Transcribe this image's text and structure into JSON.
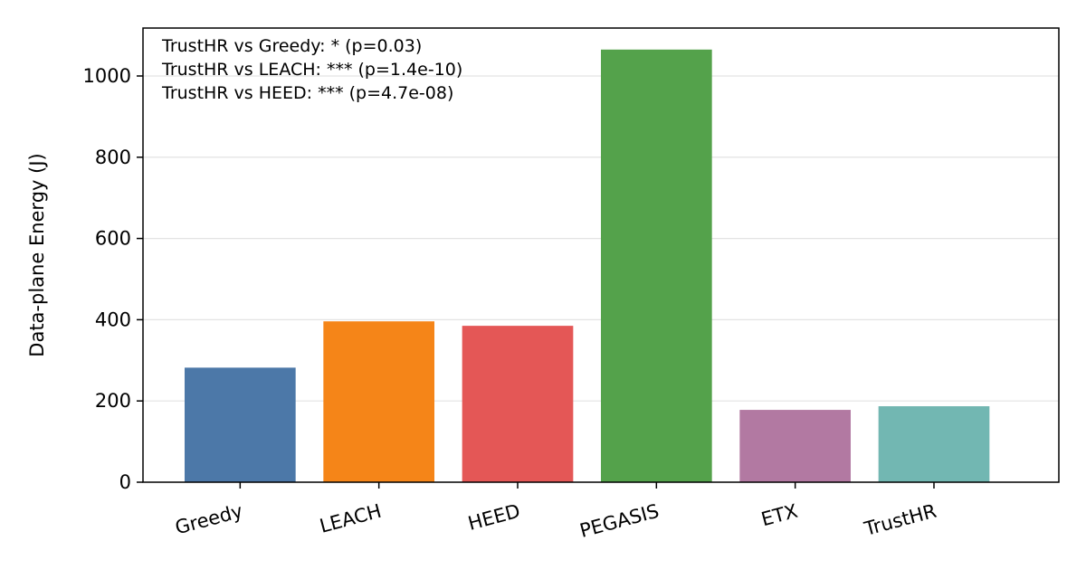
{
  "chart_data": {
    "type": "bar",
    "title": "",
    "xlabel": "",
    "ylabel": "Data-plane Energy (J)",
    "categories": [
      "Greedy",
      "LEACH",
      "HEED",
      "PEGASIS",
      "ETX",
      "TrustHR"
    ],
    "values": [
      282,
      396,
      385,
      1065,
      178,
      187
    ],
    "colors": [
      "#4c78a8",
      "#f58518",
      "#e45756",
      "#54a24b",
      "#b279a2",
      "#72b7b2"
    ],
    "ylim": [
      0,
      1118
    ],
    "yticks": [
      0,
      200,
      400,
      600,
      800,
      1000
    ],
    "grid": "y",
    "legend": "none",
    "annotations": [
      "TrustHR vs Greedy: * (p=0.03)",
      "TrustHR vs LEACH: *** (p=1.4e-10)",
      "TrustHR vs HEED: *** (p=4.7e-08)"
    ]
  }
}
